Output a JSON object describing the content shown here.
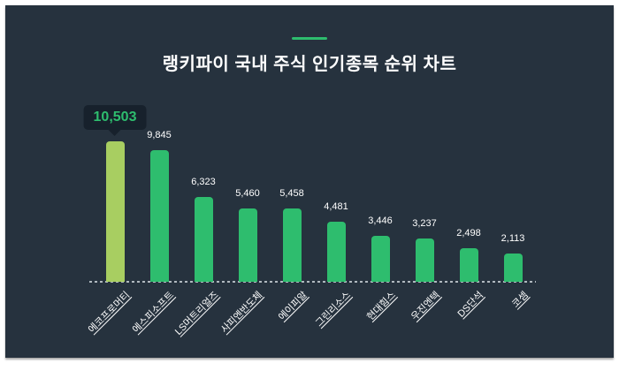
{
  "header": {
    "title": "랭키파이 국내 주식 인기종목 순위 차트"
  },
  "chart_data": {
    "type": "bar",
    "title": "랭키파이 국내 주식 인기종목 순위 차트",
    "xlabel": "",
    "ylabel": "",
    "legend": false,
    "gridlines": false,
    "baseline_style": "dashed",
    "ylim": [
      0,
      10503
    ],
    "categories": [
      "에코프로머티",
      "에스피소프트",
      "LS머트리얼즈",
      "사피엔반도체",
      "에이피알",
      "그린리소스",
      "현대힘스",
      "우진엔텍",
      "DS단석",
      "코셈"
    ],
    "values": [
      10503,
      9845,
      6323,
      5460,
      5458,
      4481,
      3446,
      3237,
      2498,
      2113
    ],
    "value_labels": [
      "10,503",
      "9,845",
      "6,323",
      "5,460",
      "5,458",
      "4,481",
      "3,446",
      "3,237",
      "2,498",
      "2,113"
    ],
    "highlight": {
      "index": 0,
      "label": "10,503",
      "style": "callout-bubble"
    },
    "colors": {
      "background": "#26323E",
      "bar": "#2EBD6E",
      "highlight_bar": "#A8CE61",
      "accent_line": "#2EBD6E",
      "bubble_background": "#17212C",
      "bubble_text": "#2EBD6E",
      "label_text": "#FFFFFF",
      "baseline": "#C9D1D6"
    }
  }
}
